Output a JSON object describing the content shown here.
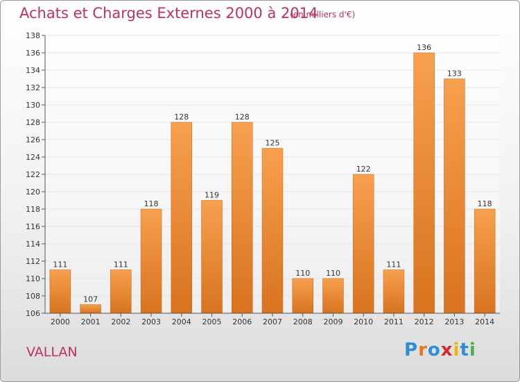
{
  "title": "Achats et Charges Externes 2000 à 2014",
  "unit": "(en milliers d'€)",
  "commune": "VALLAN",
  "logo": {
    "text": "Proxiti",
    "letters": [
      "P",
      "r",
      "o",
      "x",
      "i",
      "t",
      "i"
    ],
    "colors": [
      "#2a8fd8",
      "#e87a1c",
      "#2a8fd8",
      "#d4282f",
      "#f2b400",
      "#2a8fd8",
      "#4caf50"
    ]
  },
  "colors": {
    "title": "#c0305a",
    "bar_light": "#f7a04e",
    "bar_dark": "#d8731f",
    "grid": "#e6e6e6",
    "axis": "#555555"
  },
  "chart_data": {
    "type": "bar",
    "categories": [
      "2000",
      "2001",
      "2002",
      "2003",
      "2004",
      "2005",
      "2006",
      "2007",
      "2008",
      "2009",
      "2010",
      "2011",
      "2012",
      "2013",
      "2014"
    ],
    "values": [
      111,
      107,
      111,
      118,
      128,
      119,
      128,
      125,
      110,
      110,
      122,
      111,
      136,
      133,
      118
    ],
    "title": "Achats et Charges Externes 2000 à 2014",
    "subtitle": "(en milliers d'€)",
    "xlabel": "",
    "ylabel": "",
    "ylim": [
      106,
      138
    ],
    "yticks": [
      106,
      108,
      110,
      112,
      114,
      116,
      118,
      120,
      122,
      124,
      126,
      128,
      130,
      132,
      134,
      136,
      138
    ],
    "grid": true,
    "legend": "none"
  }
}
